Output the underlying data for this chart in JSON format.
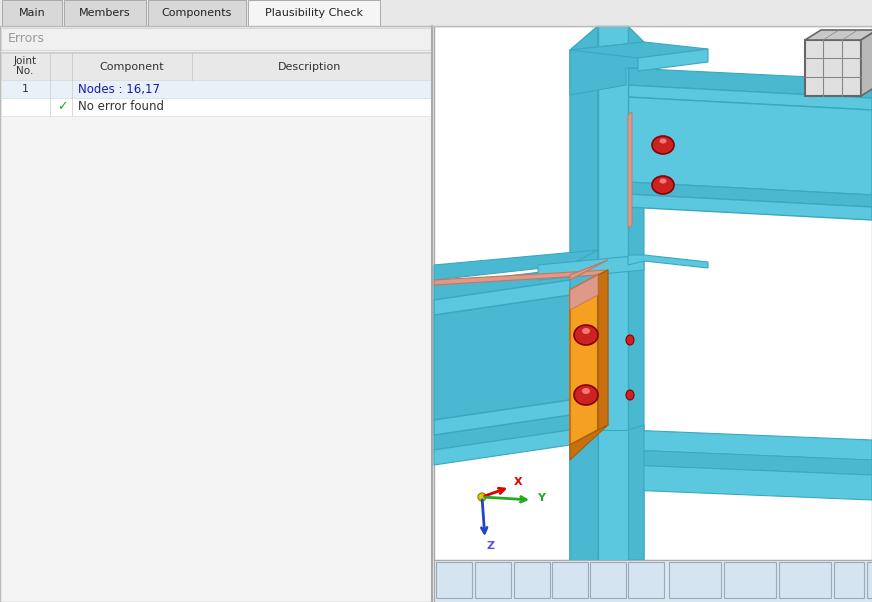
{
  "tab_labels": [
    "Main",
    "Members",
    "Components",
    "Plausibility Check"
  ],
  "active_tab": 3,
  "panel_bg": "#f0f0f0",
  "left_panel_bg": "#f4f4f4",
  "errors_label": "Errors",
  "row1_text": "Nodes : 16,17",
  "row2_text": "No error found",
  "row1_bg": "#e8f0f8",
  "header_bg": "#e8e8e8",
  "steel_blue": "#5bc8e0",
  "steel_mid": "#4ab8d0",
  "steel_dark": "#3aa8c0",
  "orange_plate": "#f5a020",
  "orange_dark": "#c87010",
  "orange_shadow": "#e09060",
  "red_bolt": "#cc2222",
  "salmon": "#e09888",
  "toolbar_bg": "#dce8f0",
  "cube_face": "#d8d8d8",
  "cube_top": "#c8c8c8",
  "cube_right": "#b8b8b8"
}
